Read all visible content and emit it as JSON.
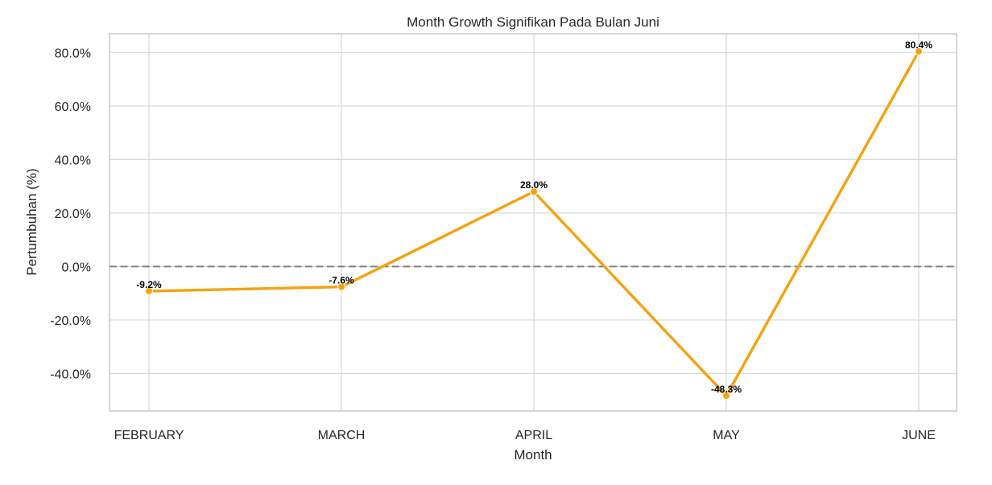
{
  "chart_data": {
    "type": "line",
    "title": "Month Growth Signifikan Pada Bulan Juni",
    "xlabel": "Month",
    "ylabel": "Pertumbuhan (%)",
    "categories": [
      "FEBRUARY",
      "MARCH",
      "APRIL",
      "MAY",
      "JUNE"
    ],
    "series": [
      {
        "values": [
          -9.2,
          -7.6,
          28.0,
          -48.3,
          80.4
        ],
        "data_labels": [
          "-9.2%",
          "-7.6%",
          "28.0%",
          "-48.3%",
          "80.4%"
        ],
        "color": "#f5a20e"
      }
    ],
    "ylim": [
      -54,
      87
    ],
    "yticks": [
      -40,
      -20,
      0,
      20,
      40,
      60,
      80
    ],
    "ytick_labels": [
      "-40.0%",
      "-20.0%",
      "0.0%",
      "20.0%",
      "40.0%",
      "60.0%",
      "80.0%"
    ],
    "reference_line": {
      "y": 0,
      "style": "dashed",
      "color": "#808080"
    },
    "grid": true,
    "legend": false
  }
}
